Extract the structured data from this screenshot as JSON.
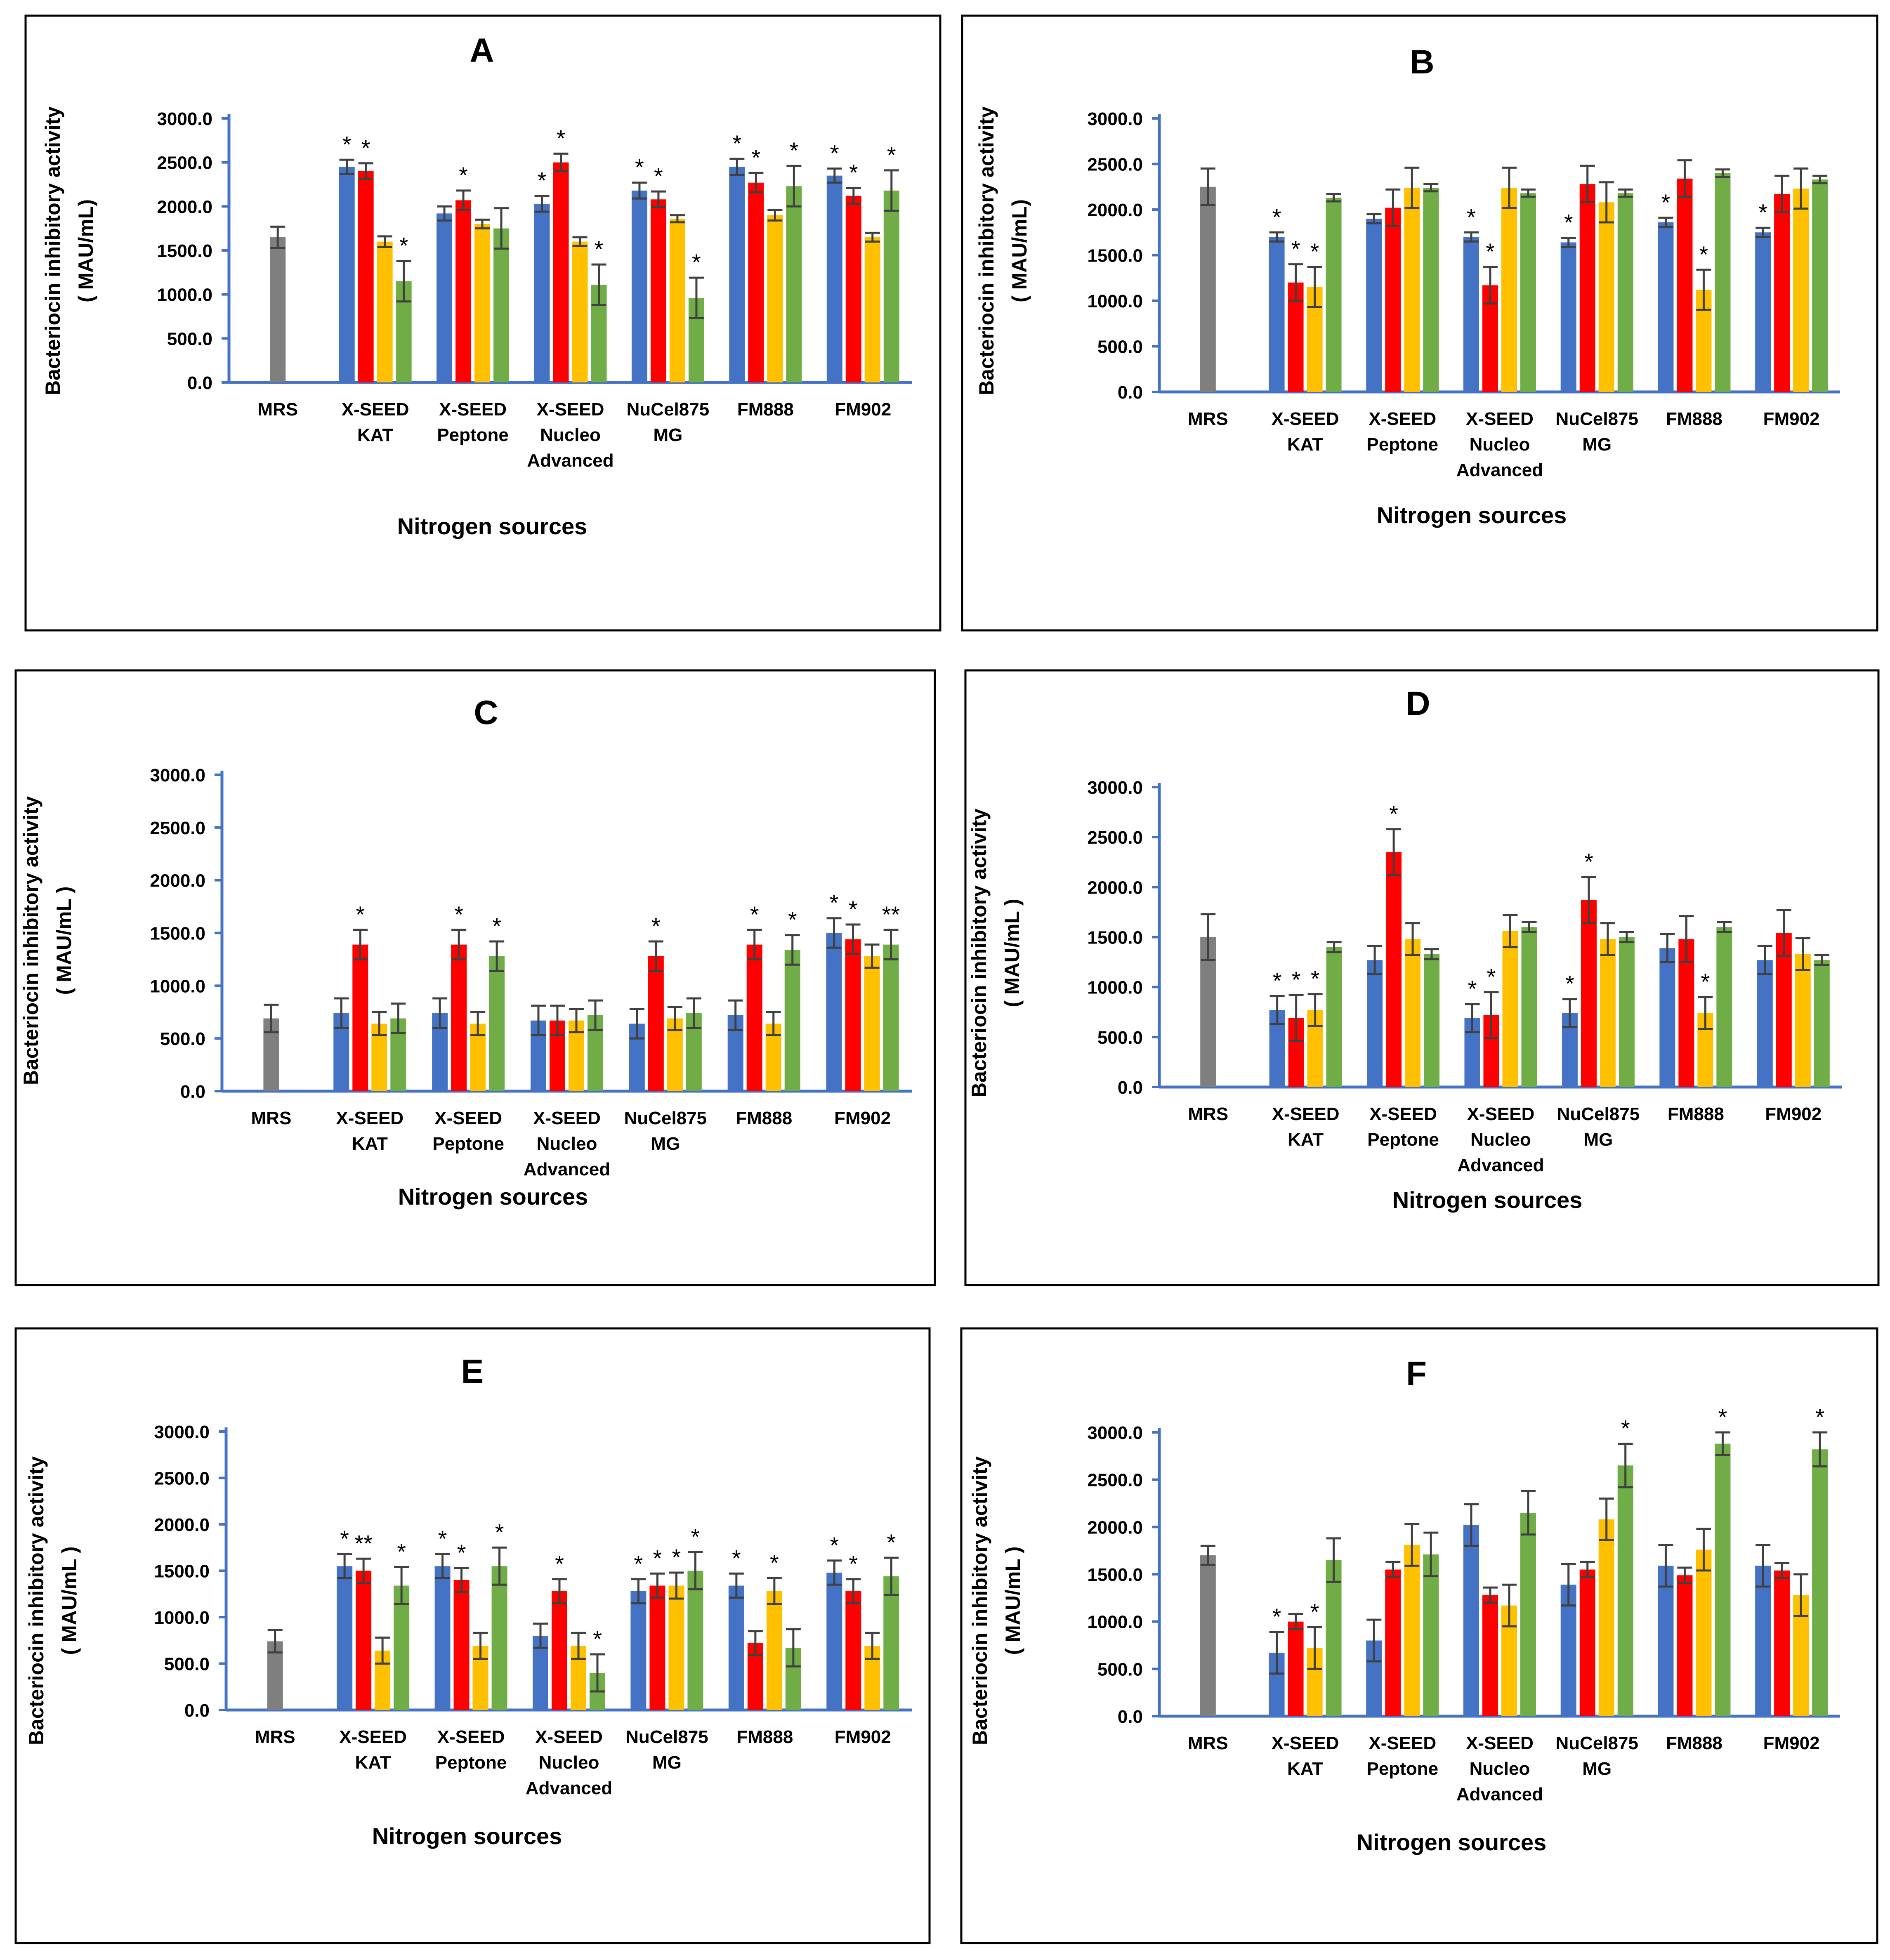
{
  "colors": {
    "control": "#7f7f7f",
    "series1": "#4472c4",
    "series2": "#ff0000",
    "series3": "#ffc000",
    "series4": "#70ad47",
    "axis": "#4472c4",
    "text": "#000000",
    "error_bar": "#404040"
  },
  "chart_data": [
    {
      "type": "bar",
      "title": "A",
      "xlabel": "Nitrogen sources",
      "ylabel_line1": "Bacteriocin inhibitory activity",
      "ylabel_line2": "( MAU/mL)",
      "ylim": [
        0,
        3000
      ],
      "ytick_labels": [
        "0.0",
        "500.0",
        "1000.0",
        "1500.0",
        "2000.0",
        "2500.0",
        "3000.0"
      ],
      "categories": [
        [
          "MRS"
        ],
        [
          "X-SEED",
          "KAT"
        ],
        [
          "X-SEED",
          "Peptone"
        ],
        [
          "X-SEED",
          "Nucleo",
          "Advanced"
        ],
        [
          "NuCel875",
          "MG"
        ],
        [
          "FM888"
        ],
        [
          "FM902"
        ]
      ],
      "control": {
        "value": 1650,
        "error": 120
      },
      "groups": [
        {
          "values": [
            2450,
            2400,
            1600,
            1150
          ],
          "errors": [
            80,
            90,
            60,
            230
          ],
          "marks": [
            "*",
            "*",
            "",
            "*"
          ]
        },
        {
          "values": [
            1920,
            2070,
            1800,
            1750
          ],
          "errors": [
            80,
            110,
            50,
            230
          ],
          "marks": [
            "",
            "*",
            "",
            ""
          ]
        },
        {
          "values": [
            2030,
            2500,
            1600,
            1110
          ],
          "errors": [
            90,
            100,
            50,
            230
          ],
          "marks": [
            "*",
            "*",
            "",
            "*"
          ]
        },
        {
          "values": [
            2180,
            2080,
            1860,
            960
          ],
          "errors": [
            90,
            90,
            40,
            230
          ],
          "marks": [
            "*",
            "*",
            "",
            "*"
          ]
        },
        {
          "values": [
            2450,
            2270,
            1900,
            2230
          ],
          "errors": [
            90,
            110,
            60,
            230
          ],
          "marks": [
            "*",
            "*",
            "",
            "*"
          ]
        },
        {
          "values": [
            2350,
            2120,
            1650,
            2180
          ],
          "errors": [
            80,
            90,
            50,
            230
          ],
          "marks": [
            "*",
            "*",
            "",
            "*"
          ]
        }
      ]
    },
    {
      "type": "bar",
      "title": "B",
      "xlabel": "Nitrogen sources",
      "ylabel_line1": "Bacteriocin inhibitory activity",
      "ylabel_line2": "( MAU/mL)",
      "ylim": [
        0,
        3000
      ],
      "ytick_labels": [
        "0.0",
        "500.0",
        "1000.0",
        "1500.0",
        "2000.0",
        "2500.0",
        "3000.0"
      ],
      "categories": [
        [
          "MRS"
        ],
        [
          "X-SEED",
          "KAT"
        ],
        [
          "X-SEED",
          "Peptone"
        ],
        [
          "X-SEED",
          "Nucleo",
          "Advanced"
        ],
        [
          "NuCel875",
          "MG"
        ],
        [
          "FM888"
        ],
        [
          "FM902"
        ]
      ],
      "control": {
        "value": 2250,
        "error": 200
      },
      "groups": [
        {
          "values": [
            1700,
            1200,
            1150,
            2130
          ],
          "errors": [
            50,
            200,
            220,
            40
          ],
          "marks": [
            "*",
            "*",
            "*",
            ""
          ]
        },
        {
          "values": [
            1900,
            2020,
            2240,
            2240
          ],
          "errors": [
            50,
            200,
            220,
            40
          ],
          "marks": [
            "",
            "",
            "",
            ""
          ]
        },
        {
          "values": [
            1700,
            1170,
            2240,
            2180
          ],
          "errors": [
            50,
            200,
            220,
            40
          ],
          "marks": [
            "*",
            "*",
            "",
            ""
          ]
        },
        {
          "values": [
            1640,
            2280,
            2080,
            2180
          ],
          "errors": [
            50,
            200,
            220,
            40
          ],
          "marks": [
            "*",
            "",
            "",
            ""
          ]
        },
        {
          "values": [
            1860,
            2340,
            1120,
            2400
          ],
          "errors": [
            50,
            200,
            220,
            40
          ],
          "marks": [
            "*",
            "",
            "*",
            ""
          ]
        },
        {
          "values": [
            1750,
            2170,
            2230,
            2330
          ],
          "errors": [
            50,
            200,
            220,
            40
          ],
          "marks": [
            "*",
            "",
            "",
            ""
          ]
        }
      ]
    },
    {
      "type": "bar",
      "title": "C",
      "xlabel": "Nitrogen sources",
      "ylabel_line1": "Bacteriocin inhibitory activity",
      "ylabel_line2": "( MAU/mL )",
      "ylim": [
        0,
        3000
      ],
      "ytick_labels": [
        "0.0",
        "500.0",
        "1000.0",
        "1500.0",
        "2000.0",
        "2500.0",
        "3000.0"
      ],
      "categories": [
        [
          "MRS"
        ],
        [
          "X-SEED",
          "KAT"
        ],
        [
          "X-SEED",
          "Peptone"
        ],
        [
          "X-SEED",
          "Nucleo",
          "Advanced"
        ],
        [
          "NuCel875",
          "MG"
        ],
        [
          "FM888"
        ],
        [
          "FM902"
        ]
      ],
      "control": {
        "value": 690,
        "error": 130
      },
      "groups": [
        {
          "values": [
            740,
            1390,
            640,
            690
          ],
          "errors": [
            140,
            140,
            110,
            140
          ],
          "marks": [
            "",
            "*",
            "",
            ""
          ]
        },
        {
          "values": [
            740,
            1390,
            640,
            1280
          ],
          "errors": [
            140,
            140,
            110,
            140
          ],
          "marks": [
            "",
            "*",
            "",
            "*"
          ]
        },
        {
          "values": [
            670,
            670,
            670,
            720
          ],
          "errors": [
            140,
            140,
            110,
            140
          ],
          "marks": [
            "",
            "",
            "",
            ""
          ]
        },
        {
          "values": [
            640,
            1280,
            690,
            740
          ],
          "errors": [
            140,
            140,
            110,
            140
          ],
          "marks": [
            "",
            "*",
            "",
            ""
          ]
        },
        {
          "values": [
            720,
            1390,
            640,
            1340
          ],
          "errors": [
            140,
            140,
            110,
            140
          ],
          "marks": [
            "",
            "*",
            "",
            "*"
          ]
        },
        {
          "values": [
            1500,
            1440,
            1280,
            1390
          ],
          "errors": [
            140,
            140,
            110,
            140
          ],
          "marks": [
            "*",
            "*",
            "",
            "**"
          ]
        }
      ]
    },
    {
      "type": "bar",
      "title": "D",
      "xlabel": "Nitrogen sources",
      "ylabel_line1": "Bacteriocin inhibitory activity",
      "ylabel_line2": "( MAU/mL )",
      "ylim": [
        0,
        3000
      ],
      "ytick_labels": [
        "0.0",
        "500.0",
        "1000.0",
        "1500.0",
        "2000.0",
        "2500.0",
        "3000.0"
      ],
      "categories": [
        [
          "MRS"
        ],
        [
          "X-SEED",
          "KAT"
        ],
        [
          "X-SEED",
          "Peptone"
        ],
        [
          "X-SEED",
          "Nucleo",
          "Advanced"
        ],
        [
          "NuCel875",
          "MG"
        ],
        [
          "FM888"
        ],
        [
          "FM902"
        ]
      ],
      "control": {
        "value": 1500,
        "error": 230
      },
      "groups": [
        {
          "values": [
            770,
            690,
            770,
            1400
          ],
          "errors": [
            140,
            230,
            160,
            50
          ],
          "marks": [
            "*",
            "*",
            "*",
            ""
          ]
        },
        {
          "values": [
            1270,
            2350,
            1480,
            1330
          ],
          "errors": [
            140,
            230,
            160,
            50
          ],
          "marks": [
            "",
            "*",
            "",
            ""
          ]
        },
        {
          "values": [
            690,
            720,
            1560,
            1600
          ],
          "errors": [
            140,
            230,
            160,
            50
          ],
          "marks": [
            "*",
            "*",
            "",
            ""
          ]
        },
        {
          "values": [
            740,
            1870,
            1480,
            1500
          ],
          "errors": [
            140,
            230,
            160,
            50
          ],
          "marks": [
            "*",
            "*",
            "",
            ""
          ]
        },
        {
          "values": [
            1390,
            1480,
            740,
            1600
          ],
          "errors": [
            140,
            230,
            160,
            50
          ],
          "marks": [
            "",
            "",
            "*",
            ""
          ]
        },
        {
          "values": [
            1270,
            1540,
            1330,
            1270
          ],
          "errors": [
            140,
            230,
            160,
            50
          ],
          "marks": [
            "",
            "",
            "",
            ""
          ]
        }
      ]
    },
    {
      "type": "bar",
      "title": "E",
      "xlabel": "Nitrogen sources",
      "ylabel_line1": "Bacteriocin inhibitory activity",
      "ylabel_line2": "( MAU/mL )",
      "ylim": [
        0,
        3000
      ],
      "ytick_labels": [
        "0.0",
        "500.0",
        "1000.0",
        "1500.0",
        "2000.0",
        "2500.0",
        "3000.0"
      ],
      "categories": [
        [
          "MRS"
        ],
        [
          "X-SEED",
          "KAT"
        ],
        [
          "X-SEED",
          "Peptone"
        ],
        [
          "X-SEED",
          "Nucleo",
          "Advanced"
        ],
        [
          "NuCel875",
          "MG"
        ],
        [
          "FM888"
        ],
        [
          "FM902"
        ]
      ],
      "control": {
        "value": 740,
        "error": 120
      },
      "groups": [
        {
          "values": [
            1550,
            1500,
            640,
            1340
          ],
          "errors": [
            130,
            130,
            140,
            200
          ],
          "marks": [
            "*",
            "**",
            "",
            "*"
          ]
        },
        {
          "values": [
            1550,
            1400,
            690,
            1550
          ],
          "errors": [
            130,
            130,
            140,
            200
          ],
          "marks": [
            "*",
            "*",
            "",
            "*"
          ]
        },
        {
          "values": [
            800,
            1280,
            690,
            400
          ],
          "errors": [
            130,
            130,
            140,
            200
          ],
          "marks": [
            "",
            "*",
            "",
            "*"
          ]
        },
        {
          "values": [
            1280,
            1340,
            1340,
            1500
          ],
          "errors": [
            130,
            130,
            140,
            200
          ],
          "marks": [
            "*",
            "*",
            "*",
            "*"
          ]
        },
        {
          "values": [
            1340,
            720,
            1280,
            670
          ],
          "errors": [
            130,
            130,
            140,
            200
          ],
          "marks": [
            "*",
            "",
            "*",
            ""
          ]
        },
        {
          "values": [
            1480,
            1280,
            690,
            1440
          ],
          "errors": [
            130,
            130,
            140,
            200
          ],
          "marks": [
            "*",
            "*",
            "",
            "*"
          ]
        }
      ]
    },
    {
      "type": "bar",
      "title": "F",
      "xlabel": "Nitrogen sources",
      "ylabel_line1": "Bacteriocin inhibitory activity",
      "ylabel_line2": "( MAU/mL )",
      "ylim": [
        0,
        3000
      ],
      "ytick_labels": [
        "0.0",
        "500.0",
        "1000.0",
        "1500.0",
        "2000.0",
        "2500.0",
        "3000.0"
      ],
      "categories": [
        [
          "MRS"
        ],
        [
          "X-SEED",
          "KAT"
        ],
        [
          "X-SEED",
          "Peptone"
        ],
        [
          "X-SEED",
          "Nucleo",
          "Advanced"
        ],
        [
          "NuCel875",
          "MG"
        ],
        [
          "FM888"
        ],
        [
          "FM902"
        ]
      ],
      "control": {
        "value": 1700,
        "error": 100
      },
      "groups": [
        {
          "values": [
            670,
            1000,
            720,
            1650
          ],
          "errors": [
            220,
            80,
            220,
            230
          ],
          "marks": [
            "*",
            "",
            "*",
            ""
          ]
        },
        {
          "values": [
            800,
            1550,
            1810,
            1710
          ],
          "errors": [
            220,
            80,
            220,
            230
          ],
          "marks": [
            "",
            "",
            "",
            ""
          ]
        },
        {
          "values": [
            2020,
            1280,
            1170,
            2150
          ],
          "errors": [
            220,
            80,
            220,
            230
          ],
          "marks": [
            "",
            "",
            "",
            ""
          ]
        },
        {
          "values": [
            1390,
            1550,
            2080,
            2650
          ],
          "errors": [
            220,
            80,
            220,
            230
          ],
          "marks": [
            "",
            "",
            "",
            "*"
          ]
        },
        {
          "values": [
            1590,
            1490,
            1760,
            2880
          ],
          "errors": [
            220,
            80,
            220,
            120
          ],
          "marks": [
            "",
            "",
            "",
            "*"
          ]
        },
        {
          "values": [
            1590,
            1540,
            1280,
            2820
          ],
          "errors": [
            220,
            80,
            220,
            180
          ],
          "marks": [
            "",
            "",
            "",
            "*"
          ]
        }
      ]
    }
  ]
}
